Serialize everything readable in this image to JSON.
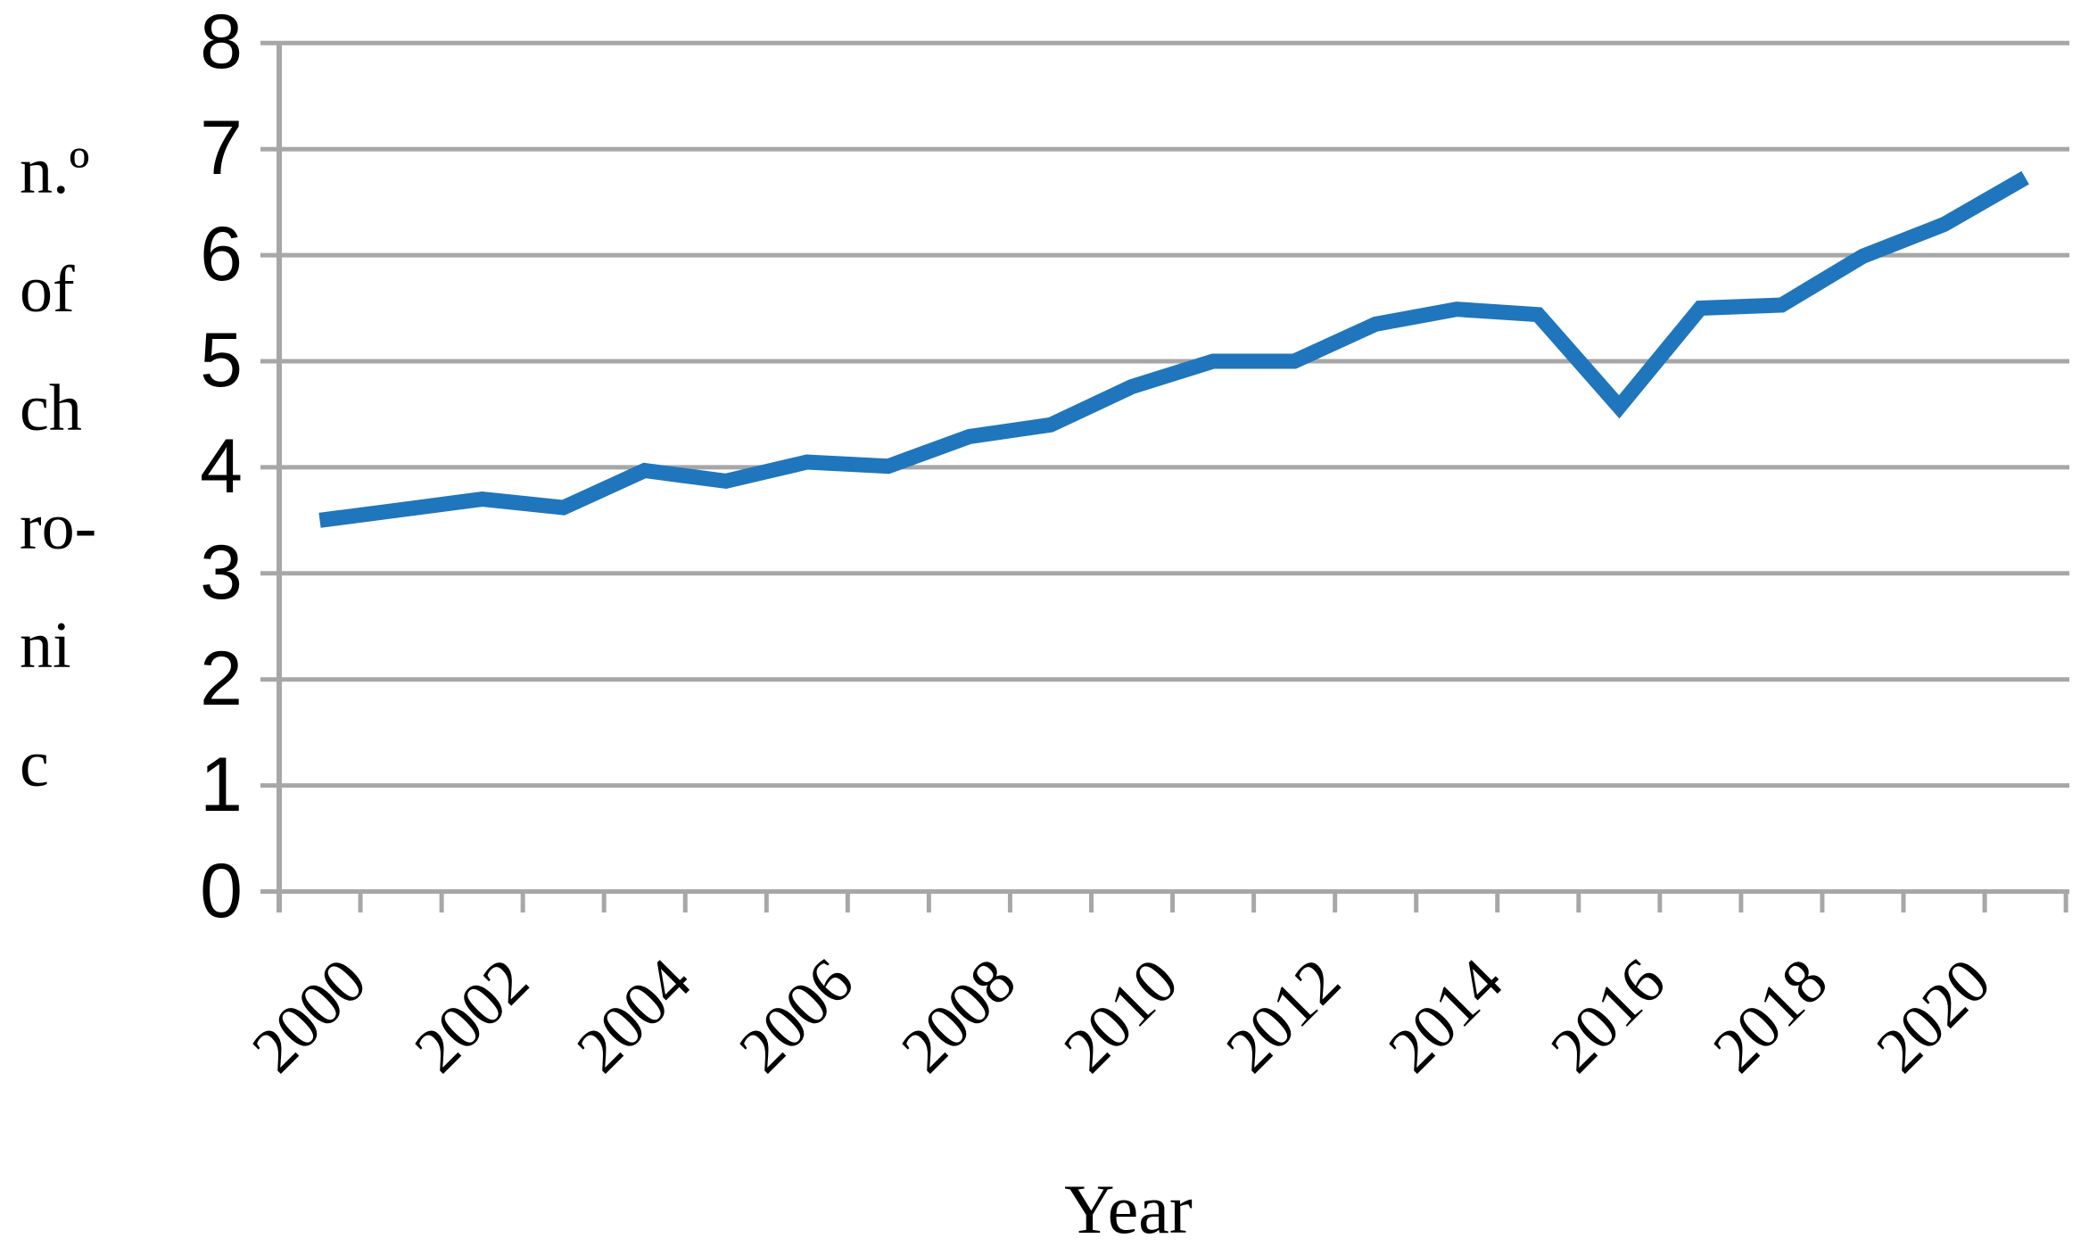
{
  "figure": {
    "y_axis_title_lines": [
      "n.º",
      "of",
      "ch",
      "ro-",
      "ni",
      "c"
    ],
    "x_axis_title": "Year",
    "y_tick_labels": [
      "0",
      "1",
      "2",
      "3",
      "4",
      "5",
      "6",
      "7",
      "8"
    ],
    "x_tick_labels": [
      "2000",
      "2002",
      "2004",
      "2006",
      "2008",
      "2010",
      "2012",
      "2014",
      "2016",
      "2018",
      "2020"
    ]
  },
  "chart_data": {
    "type": "line",
    "title": "",
    "xlabel": "Year",
    "ylabel": "n.º of chronic",
    "categories": [
      2000,
      2001,
      2002,
      2003,
      2004,
      2005,
      2006,
      2007,
      2008,
      2009,
      2010,
      2011,
      2012,
      2013,
      2014,
      2015,
      2016,
      2017,
      2018,
      2019,
      2020,
      2021
    ],
    "values": [
      3.5,
      3.6,
      3.7,
      3.62,
      3.97,
      3.87,
      4.05,
      4.01,
      4.29,
      4.4,
      4.76,
      5.0,
      5.0,
      5.35,
      5.49,
      5.44,
      4.57,
      5.5,
      5.53,
      5.99,
      6.29,
      6.73
    ],
    "ylim": [
      0,
      8
    ],
    "y_tick_step": 1,
    "x_label_every": 2,
    "grid": "horizontal-major",
    "legend": "none",
    "line_color": "#1F76BC",
    "grid_color": "#A7A7A7",
    "axis_color": "#A7A7A7",
    "text_color": "#000000"
  }
}
